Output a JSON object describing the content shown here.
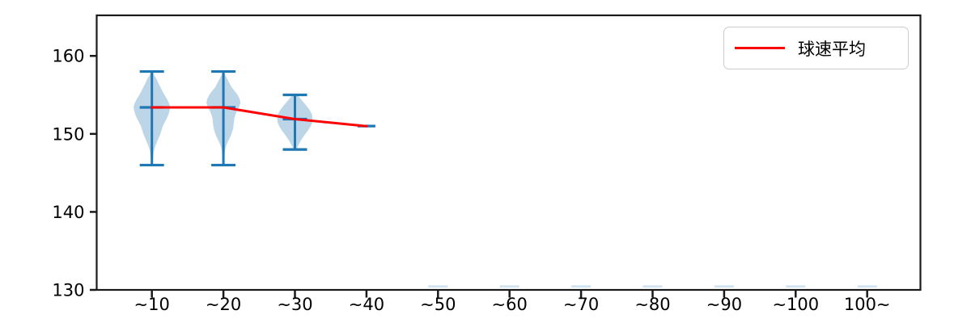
{
  "legend": {
    "label": "球速平均"
  },
  "chart_data": {
    "type": "violin",
    "title": "",
    "xlabel": "",
    "ylabel": "",
    "categories": [
      "∼10",
      "∼20",
      "∼30",
      "∼40",
      "∼50",
      "∼60",
      "∼70",
      "∼80",
      "∼90",
      "∼100",
      "100∼"
    ],
    "yticks": [
      130,
      140,
      150,
      160
    ],
    "ylim": [
      130,
      165.2
    ],
    "grid": false,
    "legend_position": "upper right",
    "series": [
      {
        "name": "球速平均",
        "type": "line",
        "color": "#ff0000",
        "values": [
          153.4,
          153.4,
          151.9,
          151.0,
          null,
          null,
          null,
          null,
          null,
          null,
          null
        ]
      }
    ],
    "violins": [
      {
        "category": "∼10",
        "index": 0,
        "min": 146,
        "max": 158,
        "mean": 153.4,
        "profile": [
          [
            158.0,
            0.8
          ],
          [
            157.5,
            3
          ],
          [
            157.0,
            6
          ],
          [
            156.5,
            8
          ],
          [
            156.0,
            10.5
          ],
          [
            155.5,
            13
          ],
          [
            155.0,
            15.5
          ],
          [
            154.5,
            18.5
          ],
          [
            154.0,
            21
          ],
          [
            153.5,
            22.5
          ],
          [
            153.0,
            22
          ],
          [
            152.5,
            20.5
          ],
          [
            152.0,
            18.5
          ],
          [
            151.5,
            16
          ],
          [
            151.0,
            13.5
          ],
          [
            150.5,
            12
          ],
          [
            150.0,
            10.5
          ],
          [
            149.5,
            8.5
          ],
          [
            149.0,
            6.5
          ],
          [
            148.5,
            4.5
          ],
          [
            148.0,
            3
          ],
          [
            147.5,
            2
          ],
          [
            147.0,
            1.5
          ],
          [
            146.5,
            1.2
          ],
          [
            146.1,
            1
          ]
        ]
      },
      {
        "category": "∼20",
        "index": 1,
        "min": 146,
        "max": 158,
        "mean": 153.4,
        "profile": [
          [
            158.0,
            0.8
          ],
          [
            157.5,
            2.5
          ],
          [
            157.0,
            5
          ],
          [
            156.5,
            7.5
          ],
          [
            156.0,
            10
          ],
          [
            155.5,
            14
          ],
          [
            155.0,
            17.5
          ],
          [
            154.5,
            20
          ],
          [
            154.0,
            21
          ],
          [
            153.5,
            19.5
          ],
          [
            153.0,
            17
          ],
          [
            152.5,
            15
          ],
          [
            152.0,
            13.5
          ],
          [
            151.5,
            13
          ],
          [
            151.0,
            12.5
          ],
          [
            150.5,
            11.5
          ],
          [
            150.0,
            10
          ],
          [
            149.5,
            8
          ],
          [
            149.0,
            5.5
          ],
          [
            148.5,
            3.5
          ],
          [
            148.0,
            2.2
          ],
          [
            147.5,
            1.5
          ],
          [
            147.0,
            1.2
          ],
          [
            146.5,
            1
          ],
          [
            146.1,
            0.9
          ]
        ]
      },
      {
        "category": "∼30",
        "index": 2,
        "min": 148,
        "max": 155,
        "mean": 151.9,
        "profile": [
          [
            155.0,
            3
          ],
          [
            154.5,
            7
          ],
          [
            154.0,
            11
          ],
          [
            153.5,
            15
          ],
          [
            153.0,
            18.5
          ],
          [
            152.5,
            21
          ],
          [
            152.0,
            21.8
          ],
          [
            151.5,
            21.5
          ],
          [
            151.0,
            19.5
          ],
          [
            150.5,
            16.5
          ],
          [
            150.0,
            13
          ],
          [
            149.5,
            9.5
          ],
          [
            149.0,
            6.5
          ],
          [
            148.7,
            5
          ],
          [
            148.4,
            3.5
          ],
          [
            148.1,
            2.2
          ],
          [
            148.0,
            1.5
          ]
        ]
      },
      {
        "category": "∼40",
        "index": 3,
        "min": 151,
        "max": 151,
        "mean": 151.0,
        "profile": []
      }
    ],
    "empty_marker_indices": [
      4,
      5,
      6,
      7,
      8,
      9,
      10
    ],
    "colors": {
      "violin_fill": "#bcd6e8",
      "violin_line": "#1f77b4",
      "mean_line": "#ff0000",
      "axis": "#1a1a1a",
      "empty_marker": "#cfe2f1"
    }
  }
}
